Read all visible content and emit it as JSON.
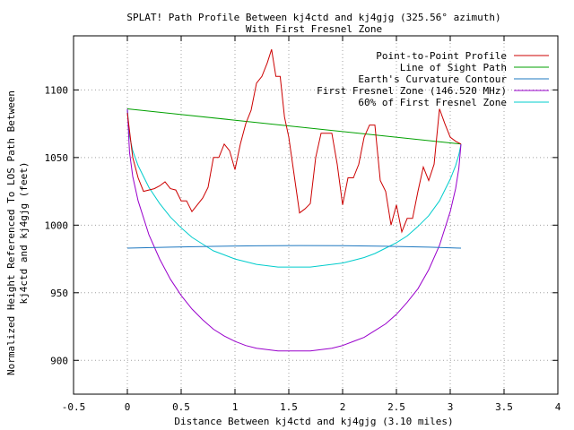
{
  "chart_data": {
    "type": "line",
    "title": "SPLAT! Path Profile Between kj4ctd and kj4gjg (325.56° azimuth)",
    "subtitle": "With First Fresnel Zone",
    "xlabel": "Distance Between kj4ctd and kj4gjg (3.10 miles)",
    "ylabel_line1": "Normalized Height Referenced To LOS Path Between",
    "ylabel_line2": "kj4ctd and kj4gjg (feet)",
    "xlim": [
      -0.5,
      4
    ],
    "ylim": [
      875,
      1140
    ],
    "grid": true,
    "legend_position": "top-right",
    "x_ticks": [
      {
        "value": -0.5,
        "label": "-0.5"
      },
      {
        "value": 0,
        "label": "0"
      },
      {
        "value": 0.5,
        "label": "0.5"
      },
      {
        "value": 1,
        "label": "1"
      },
      {
        "value": 1.5,
        "label": "1.5"
      },
      {
        "value": 2,
        "label": "2"
      },
      {
        "value": 2.5,
        "label": "2.5"
      },
      {
        "value": 3,
        "label": "3"
      },
      {
        "value": 3.5,
        "label": "3.5"
      },
      {
        "value": 4,
        "label": "4"
      }
    ],
    "y_ticks": [
      {
        "value": 900,
        "label": "900"
      },
      {
        "value": 950,
        "label": "950"
      },
      {
        "value": 1000,
        "label": "1000"
      },
      {
        "value": 1050,
        "label": "1050"
      },
      {
        "value": 1100,
        "label": "1100"
      }
    ],
    "series": [
      {
        "name": "Point-to-Point Profile",
        "color": "#cc0000",
        "points": [
          [
            0,
            1083
          ],
          [
            0.05,
            1050
          ],
          [
            0.1,
            1035
          ],
          [
            0.15,
            1025
          ],
          [
            0.2,
            1026
          ],
          [
            0.25,
            1027
          ],
          [
            0.3,
            1029
          ],
          [
            0.35,
            1032
          ],
          [
            0.4,
            1027
          ],
          [
            0.45,
            1026
          ],
          [
            0.5,
            1018
          ],
          [
            0.55,
            1018
          ],
          [
            0.6,
            1010
          ],
          [
            0.65,
            1015
          ],
          [
            0.7,
            1020
          ],
          [
            0.75,
            1028
          ],
          [
            0.8,
            1050
          ],
          [
            0.85,
            1050
          ],
          [
            0.9,
            1060
          ],
          [
            0.95,
            1055
          ],
          [
            1.0,
            1041
          ],
          [
            1.05,
            1060
          ],
          [
            1.1,
            1075
          ],
          [
            1.15,
            1085
          ],
          [
            1.2,
            1105
          ],
          [
            1.25,
            1110
          ],
          [
            1.3,
            1120
          ],
          [
            1.34,
            1130
          ],
          [
            1.38,
            1110
          ],
          [
            1.42,
            1110
          ],
          [
            1.46,
            1080
          ],
          [
            1.5,
            1065
          ],
          [
            1.55,
            1037
          ],
          [
            1.6,
            1009
          ],
          [
            1.65,
            1012
          ],
          [
            1.7,
            1016
          ],
          [
            1.75,
            1050
          ],
          [
            1.8,
            1068
          ],
          [
            1.85,
            1068
          ],
          [
            1.9,
            1068
          ],
          [
            1.95,
            1045
          ],
          [
            2.0,
            1015
          ],
          [
            2.05,
            1035
          ],
          [
            2.1,
            1035
          ],
          [
            2.15,
            1045
          ],
          [
            2.2,
            1065
          ],
          [
            2.25,
            1074
          ],
          [
            2.3,
            1074
          ],
          [
            2.35,
            1033
          ],
          [
            2.4,
            1025
          ],
          [
            2.45,
            1000
          ],
          [
            2.5,
            1015
          ],
          [
            2.55,
            995
          ],
          [
            2.6,
            1005
          ],
          [
            2.65,
            1005
          ],
          [
            2.7,
            1025
          ],
          [
            2.75,
            1043
          ],
          [
            2.8,
            1033
          ],
          [
            2.85,
            1045
          ],
          [
            2.9,
            1086
          ],
          [
            2.95,
            1075
          ],
          [
            3.0,
            1065
          ],
          [
            3.05,
            1062
          ],
          [
            3.1,
            1060
          ]
        ]
      },
      {
        "name": "Line of Sight Path",
        "color": "#00a000",
        "points": [
          [
            0,
            1086
          ],
          [
            3.1,
            1060
          ]
        ]
      },
      {
        "name": "Earth's Curvature Contour",
        "color": "#1e78c0",
        "points": [
          [
            0,
            983
          ],
          [
            0.4,
            983.7
          ],
          [
            0.8,
            984.3
          ],
          [
            1.2,
            984.7
          ],
          [
            1.6,
            984.9
          ],
          [
            2.0,
            984.8
          ],
          [
            2.4,
            984.4
          ],
          [
            2.8,
            983.7
          ],
          [
            3.1,
            983
          ]
        ]
      },
      {
        "name": "First Fresnel Zone (146.520 MHz)",
        "color": "#9900cc",
        "points": [
          [
            0,
            1086
          ],
          [
            0.02,
            1054
          ],
          [
            0.05,
            1036
          ],
          [
            0.1,
            1018
          ],
          [
            0.2,
            993
          ],
          [
            0.3,
            975
          ],
          [
            0.4,
            960
          ],
          [
            0.5,
            948
          ],
          [
            0.6,
            938
          ],
          [
            0.7,
            930
          ],
          [
            0.8,
            923
          ],
          [
            0.9,
            918
          ],
          [
            1.0,
            914
          ],
          [
            1.1,
            911
          ],
          [
            1.2,
            909
          ],
          [
            1.3,
            908
          ],
          [
            1.4,
            907
          ],
          [
            1.5,
            907
          ],
          [
            1.6,
            907
          ],
          [
            1.7,
            907
          ],
          [
            1.8,
            908
          ],
          [
            1.9,
            909
          ],
          [
            2.0,
            911
          ],
          [
            2.1,
            914
          ],
          [
            2.2,
            917
          ],
          [
            2.3,
            922
          ],
          [
            2.4,
            927
          ],
          [
            2.5,
            934
          ],
          [
            2.6,
            943
          ],
          [
            2.7,
            953
          ],
          [
            2.8,
            967
          ],
          [
            2.9,
            985
          ],
          [
            3.0,
            1010
          ],
          [
            3.05,
            1027
          ],
          [
            3.08,
            1042
          ],
          [
            3.1,
            1060
          ]
        ]
      },
      {
        "name": "60% of First Fresnel Zone",
        "color": "#00cccc",
        "points": [
          [
            0,
            1086
          ],
          [
            0.02,
            1066
          ],
          [
            0.05,
            1055
          ],
          [
            0.1,
            1044
          ],
          [
            0.2,
            1028
          ],
          [
            0.3,
            1016
          ],
          [
            0.4,
            1006
          ],
          [
            0.5,
            998
          ],
          [
            0.6,
            991
          ],
          [
            0.7,
            986
          ],
          [
            0.8,
            981
          ],
          [
            0.9,
            978
          ],
          [
            1.0,
            975
          ],
          [
            1.1,
            973
          ],
          [
            1.2,
            971
          ],
          [
            1.3,
            970
          ],
          [
            1.4,
            969
          ],
          [
            1.5,
            969
          ],
          [
            1.6,
            969
          ],
          [
            1.7,
            969
          ],
          [
            1.8,
            970
          ],
          [
            1.9,
            971
          ],
          [
            2.0,
            972
          ],
          [
            2.1,
            974
          ],
          [
            2.2,
            976
          ],
          [
            2.3,
            979
          ],
          [
            2.4,
            983
          ],
          [
            2.5,
            987
          ],
          [
            2.6,
            992
          ],
          [
            2.7,
            999
          ],
          [
            2.8,
            1007
          ],
          [
            2.9,
            1018
          ],
          [
            3.0,
            1034
          ],
          [
            3.05,
            1044
          ],
          [
            3.08,
            1052
          ],
          [
            3.1,
            1060
          ]
        ]
      }
    ]
  }
}
